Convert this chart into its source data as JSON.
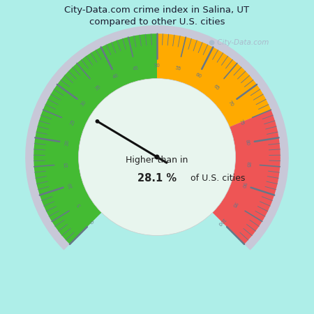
{
  "title": "City-Data.com crime index in Salina, UT\ncompared to other U.S. cities",
  "title_color": "#1a1a2e",
  "bg_color": "#aeeee8",
  "inner_bg_color": "#e8f5ee",
  "value": 28.1,
  "text_line1": "Higher than in",
  "text_bold": "28.1 %",
  "text_line3": "of U.S. cities",
  "green_color": "#44bb33",
  "orange_color": "#ffaa00",
  "red_color": "#ee5555",
  "outer_ring_color": "#c8c8d8",
  "tick_color": "#667788",
  "label_color": "#667788",
  "needle_color": "#111111",
  "watermark": "● City-Data.com",
  "watermark_color": "#aabbcc"
}
